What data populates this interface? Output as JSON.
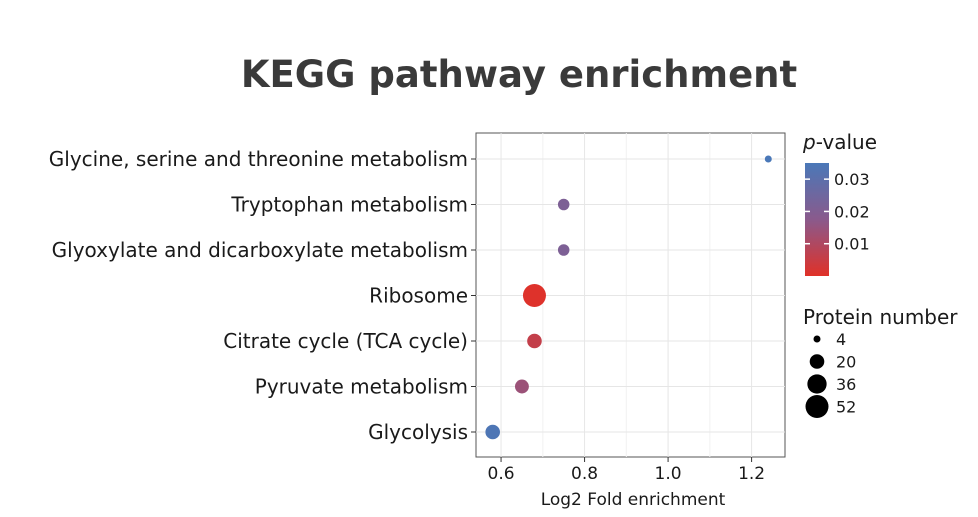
{
  "chart_data": {
    "type": "scatter",
    "title": "KEGG pathway enrichment",
    "xlabel": "Log2 Fold enrichment",
    "ylabel": "",
    "xlim": [
      0.54,
      1.28
    ],
    "xticks": [
      0.6,
      0.8,
      1.0,
      1.2
    ],
    "xtick_labels": [
      "0.6",
      "0.8",
      "1.0",
      "1.2"
    ],
    "grid": true,
    "categories": [
      "Glycine, serine and threonine metabolism",
      "Tryptophan metabolism",
      "Glyoxylate and dicarboxylate metabolism",
      "Ribosome",
      "Citrate cycle (TCA cycle)",
      "Pyruvate metabolism",
      "Glycolysis"
    ],
    "highlight_category": "Glycolysis",
    "highlight_color": "#d62728",
    "points": [
      {
        "category": "Glycine, serine and threonine metabolism",
        "x": 1.24,
        "p_value": 0.035,
        "protein_number": 4
      },
      {
        "category": "Tryptophan metabolism",
        "x": 0.75,
        "p_value": 0.021,
        "protein_number": 12
      },
      {
        "category": "Glyoxylate and dicarboxylate metabolism",
        "x": 0.75,
        "p_value": 0.021,
        "protein_number": 12
      },
      {
        "category": "Ribosome",
        "x": 0.68,
        "p_value": 0.0005,
        "protein_number": 52
      },
      {
        "category": "Citrate cycle (TCA cycle)",
        "x": 0.68,
        "p_value": 0.006,
        "protein_number": 20
      },
      {
        "category": "Pyruvate metabolism",
        "x": 0.65,
        "p_value": 0.014,
        "protein_number": 18
      },
      {
        "category": "Glycolysis",
        "x": 0.58,
        "p_value": 0.034,
        "protein_number": 20
      }
    ],
    "color_legend": {
      "title_italic": "p",
      "title_rest": "-value",
      "min": 0.0,
      "max": 0.035,
      "ticks": [
        0.03,
        0.02,
        0.01
      ],
      "tick_labels": [
        "0.03",
        "0.02",
        "0.01"
      ],
      "low_color": "#e03128",
      "high_color": "#4a78b8"
    },
    "size_legend": {
      "title": "Protein number",
      "values": [
        4,
        20,
        36,
        52
      ],
      "labels": [
        "4",
        "20",
        "36",
        "52"
      ]
    }
  }
}
